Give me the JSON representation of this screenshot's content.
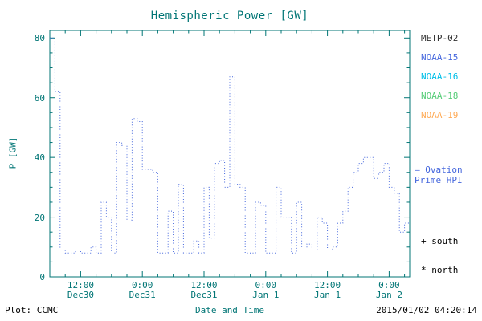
{
  "colors": {
    "frame": "#007575",
    "line": "#4466dd",
    "text": "#000000"
  },
  "legend": {
    "satellites": [
      {
        "label": "METP-02",
        "color": "#333333"
      },
      {
        "label": "NOAA-15",
        "color": "#4466dd"
      },
      {
        "label": "NOAA-16",
        "color": "#00bfe8"
      },
      {
        "label": "NOAA-18",
        "color": "#55cc77"
      },
      {
        "label": "NOAA-19",
        "color": "#ffaa55"
      }
    ],
    "ovation_line1": "— Ovation",
    "ovation_line2": "Prime HPI",
    "south": "+ south",
    "north": "* north"
  },
  "footer": {
    "left": "Plot: CCMC",
    "right": "2015/01/02 04:20:14"
  },
  "chart_data": {
    "type": "line",
    "title": "Hemispheric Power [GW]",
    "xlabel": "Date and Time",
    "ylabel": "P [GW]",
    "ylim": [
      0,
      82.5
    ],
    "yticks": [
      0,
      20,
      40,
      60,
      80
    ],
    "xlim_hours": [
      0,
      70
    ],
    "grid": false,
    "legend_position": "right",
    "xticks": [
      {
        "hour": 6,
        "time": "12:00",
        "date": "Dec30"
      },
      {
        "hour": 18,
        "time": "0:00",
        "date": "Dec31"
      },
      {
        "hour": 30,
        "time": "12:00",
        "date": "Dec31"
      },
      {
        "hour": 42,
        "time": "0:00",
        "date": "Jan 1"
      },
      {
        "hour": 54,
        "time": "12:00",
        "date": "Jan 1"
      },
      {
        "hour": 66,
        "time": "0:00",
        "date": "Jan 2"
      }
    ],
    "series": [
      {
        "name": "Ovation Prime HPI",
        "color": "#4466dd",
        "style": "dotted-step",
        "x": [
          0,
          1,
          2,
          3,
          4,
          5,
          6,
          7,
          8,
          9,
          10,
          11,
          12,
          13,
          14,
          15,
          16,
          17,
          18,
          19,
          20,
          21,
          22,
          23,
          24,
          25,
          26,
          27,
          28,
          29,
          30,
          31,
          32,
          33,
          34,
          35,
          36,
          37,
          38,
          39,
          40,
          41,
          42,
          43,
          44,
          45,
          46,
          47,
          48,
          49,
          50,
          51,
          52,
          53,
          54,
          55,
          56,
          57,
          58,
          59,
          60,
          61,
          62,
          63,
          64,
          65,
          66,
          67,
          68,
          69
        ],
        "y": [
          80,
          62,
          9,
          8,
          8,
          9,
          8,
          8,
          10,
          8,
          25,
          20,
          8,
          45,
          44,
          19,
          53,
          52,
          36,
          36,
          35,
          8,
          8,
          22,
          8,
          31,
          8,
          8,
          12,
          8,
          30,
          13,
          38,
          39,
          30,
          67,
          31,
          30,
          8,
          8,
          25,
          24,
          8,
          8,
          30,
          20,
          20,
          8,
          25,
          10,
          11,
          9,
          20,
          18,
          9,
          10,
          18,
          22,
          30,
          35,
          38,
          40,
          40,
          33,
          35,
          38,
          30,
          28,
          15,
          18
        ]
      }
    ]
  }
}
